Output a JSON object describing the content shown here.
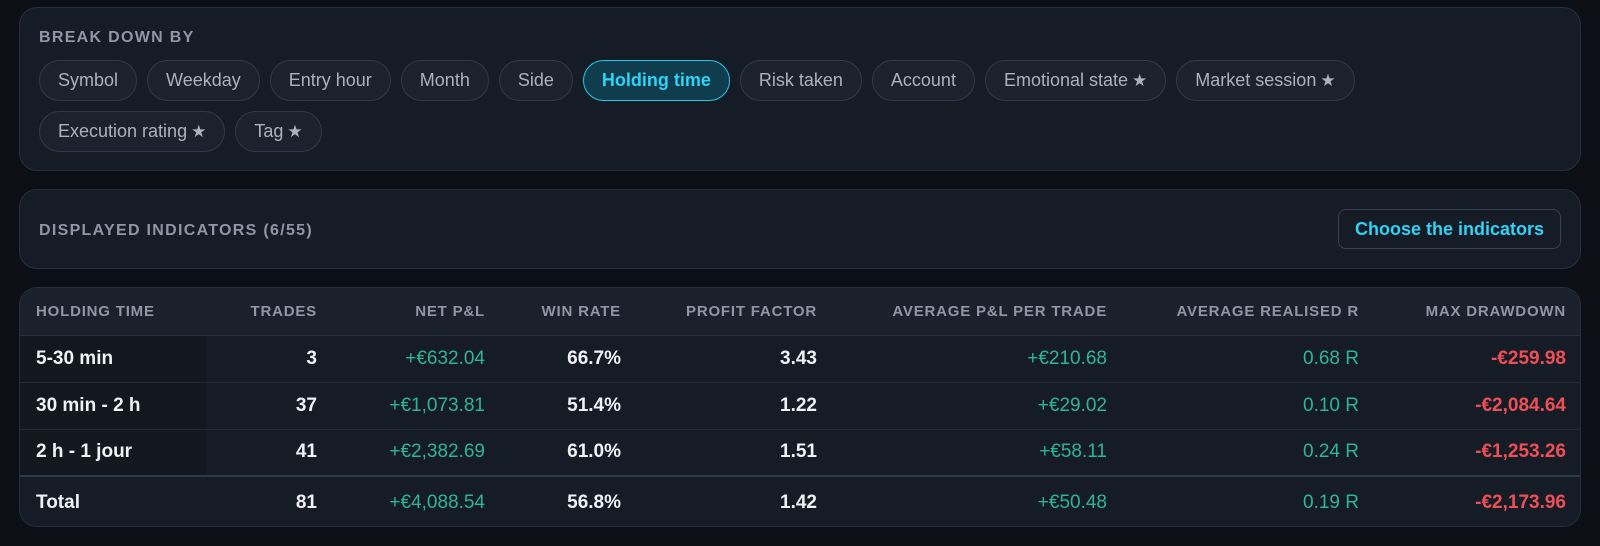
{
  "breakdown": {
    "title": "BREAK DOWN BY",
    "chips": [
      {
        "label": "Symbol",
        "active": false,
        "star": false
      },
      {
        "label": "Weekday",
        "active": false,
        "star": false
      },
      {
        "label": "Entry hour",
        "active": false,
        "star": false
      },
      {
        "label": "Month",
        "active": false,
        "star": false
      },
      {
        "label": "Side",
        "active": false,
        "star": false
      },
      {
        "label": "Holding time",
        "active": true,
        "star": false
      },
      {
        "label": "Risk taken",
        "active": false,
        "star": false
      },
      {
        "label": "Account",
        "active": false,
        "star": false
      },
      {
        "label": "Emotional state",
        "active": false,
        "star": true
      },
      {
        "label": "Market session",
        "active": false,
        "star": true
      },
      {
        "label": "Execution rating",
        "active": false,
        "star": true
      },
      {
        "label": "Tag",
        "active": false,
        "star": true
      }
    ],
    "star_glyph": "★"
  },
  "indicators": {
    "title": "DISPLAYED INDICATORS (6/55)",
    "choose_label": "Choose the indicators"
  },
  "table": {
    "headers": [
      "HOLDING TIME",
      "TRADES",
      "NET P&L",
      "WIN RATE",
      "PROFIT FACTOR",
      "AVERAGE P&L PER TRADE",
      "AVERAGE REALISED R",
      "MAX DRAWDOWN"
    ],
    "rows": [
      {
        "holding_time": "5-30 min",
        "trades": "3",
        "net_pnl": "+€632.04",
        "win_rate": "66.7%",
        "profit_factor": "3.43",
        "avg_pnl": "+€210.68",
        "avg_r": "0.68 R",
        "max_dd": "-€259.98"
      },
      {
        "holding_time": "30 min - 2 h",
        "trades": "37",
        "net_pnl": "+€1,073.81",
        "win_rate": "51.4%",
        "profit_factor": "1.22",
        "avg_pnl": "+€29.02",
        "avg_r": "0.10 R",
        "max_dd": "-€2,084.64"
      },
      {
        "holding_time": "2 h - 1 jour",
        "trades": "41",
        "net_pnl": "+€2,382.69",
        "win_rate": "61.0%",
        "profit_factor": "1.51",
        "avg_pnl": "+€58.11",
        "avg_r": "0.24 R",
        "max_dd": "-€1,253.26"
      }
    ],
    "total": {
      "holding_time": "Total",
      "trades": "81",
      "net_pnl": "+€4,088.54",
      "win_rate": "56.8%",
      "profit_factor": "1.42",
      "avg_pnl": "+€50.48",
      "avg_r": "0.19 R",
      "max_dd": "-€2,173.96"
    }
  },
  "colors": {
    "accent": "#2ed3f7",
    "positive": "#2fb592",
    "negative": "#ef4e56",
    "background": "#0c1016",
    "card": "#161c26"
  }
}
